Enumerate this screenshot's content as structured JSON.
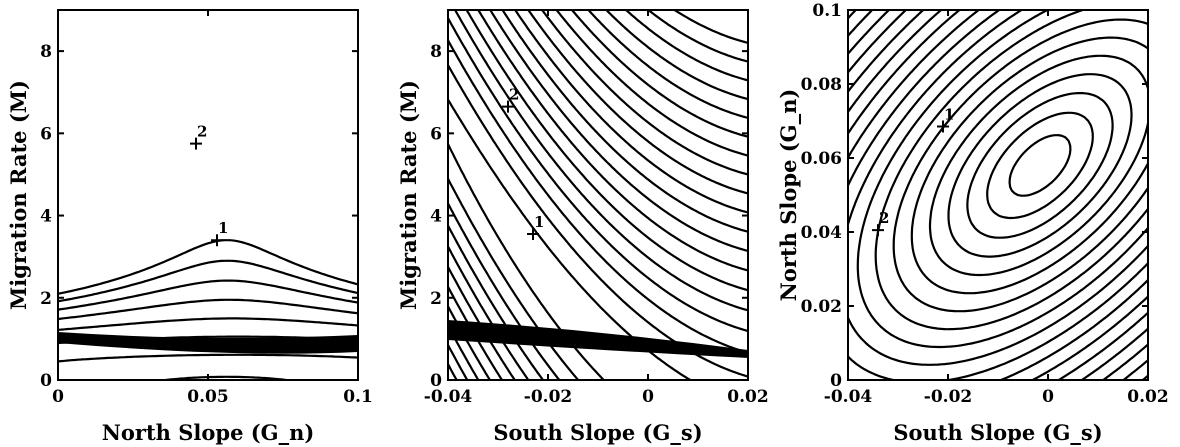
{
  "chart_data": [
    {
      "type": "contour",
      "xlabel": "North Slope (G_n)",
      "ylabel": "Migration Rate (M)",
      "xlim": [
        0,
        0.1
      ],
      "ylim": [
        0,
        9
      ],
      "xticks": [
        "0",
        "0.05",
        "0.1"
      ],
      "xtick_values": [
        0,
        0.05,
        0.1
      ],
      "yticks": [
        "0",
        "2",
        "4",
        "6",
        "8"
      ],
      "ytick_values": [
        0,
        2,
        4,
        6,
        8
      ],
      "markers": [
        {
          "label": "1",
          "x": 0.053,
          "y": 3.4
        },
        {
          "label": "2",
          "x": 0.046,
          "y": 5.75
        }
      ]
    },
    {
      "type": "contour",
      "xlabel": "South Slope (G_s)",
      "ylabel": "Migration Rate (M)",
      "xlim": [
        -0.04,
        0.02
      ],
      "ylim": [
        0,
        9
      ],
      "xticks": [
        "-0.04",
        "-0.02",
        "0",
        "0.02"
      ],
      "xtick_values": [
        -0.04,
        -0.02,
        0,
        0.02
      ],
      "yticks": [
        "0",
        "2",
        "4",
        "6",
        "8"
      ],
      "ytick_values": [
        0,
        2,
        4,
        6,
        8
      ],
      "markers": [
        {
          "label": "1",
          "x": -0.023,
          "y": 3.55
        },
        {
          "label": "2",
          "x": -0.028,
          "y": 6.65
        }
      ]
    },
    {
      "type": "contour",
      "xlabel": "South Slope (G_s)",
      "ylabel": "North Slope (G_n)",
      "xlim": [
        -0.04,
        0.02
      ],
      "ylim": [
        0,
        0.1
      ],
      "xticks": [
        "-0.04",
        "-0.02",
        "0",
        "0.02"
      ],
      "xtick_values": [
        -0.04,
        -0.02,
        0,
        0.02
      ],
      "yticks": [
        "0",
        "0.02",
        "0.04",
        "0.06",
        "0.08",
        "0.1"
      ],
      "ytick_values": [
        0,
        0.02,
        0.04,
        0.06,
        0.08,
        0.1
      ],
      "markers": [
        {
          "label": "1",
          "x": -0.021,
          "y": 0.0685
        },
        {
          "label": "2",
          "x": -0.034,
          "y": 0.0405
        }
      ]
    }
  ]
}
